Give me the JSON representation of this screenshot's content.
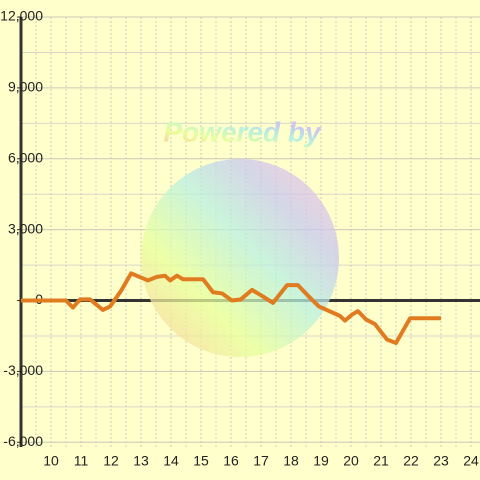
{
  "chart_data": {
    "type": "line",
    "watermark": "Powered by",
    "x": [
      9,
      10.5,
      10.73,
      10.97,
      11.3,
      11.73,
      11.97,
      12.33,
      12.67,
      13.23,
      13.53,
      13.8,
      13.97,
      14.2,
      14.4,
      15.07,
      15.4,
      15.7,
      16.03,
      16.33,
      16.7,
      17.03,
      17.4,
      17.87,
      18.23,
      18.57,
      18.93,
      19.63,
      19.8,
      20.03,
      20.23,
      20.5,
      20.8,
      21.2,
      21.5,
      21.97,
      23
    ],
    "series": [
      {
        "color": "#e07b20",
        "values": [
          0,
          0,
          -300,
          50,
          50,
          -400,
          -250,
          400,
          1150,
          850,
          1000,
          1050,
          850,
          1050,
          900,
          900,
          350,
          300,
          0,
          50,
          450,
          200,
          -100,
          650,
          650,
          200,
          -250,
          -650,
          -850,
          -600,
          -450,
          -800,
          -1000,
          -1650,
          -1800,
          -750,
          -750
        ]
      }
    ],
    "xlim": [
      9,
      24.3
    ],
    "xticks": [
      10,
      11,
      12,
      13,
      14,
      15,
      16,
      17,
      18,
      19,
      20,
      21,
      22,
      23,
      24
    ],
    "ylim": [
      -6200,
      12000
    ],
    "yticks": [
      {
        "value": -6000,
        "label": "-6,000"
      },
      {
        "value": -3000,
        "label": "-3,000"
      },
      0,
      {
        "value": 3000,
        "label": "3,000"
      },
      {
        "value": 6000,
        "label": "6,000"
      },
      {
        "value": 9000,
        "label": "9,000"
      },
      {
        "value": 12000,
        "label": "12,000"
      }
    ],
    "grid": true
  }
}
